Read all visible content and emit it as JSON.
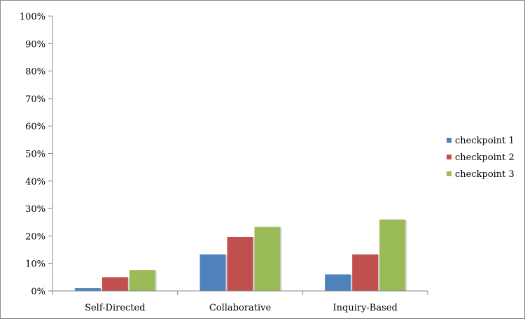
{
  "chart_data": {
    "type": "bar",
    "title": "",
    "xlabel": "",
    "ylabel": "",
    "categories": [
      "Self-Directed",
      "Collaborative",
      "Inquiry-Based"
    ],
    "series": [
      {
        "name": "checkpoint 1",
        "color": "#4f81bd",
        "values": [
          1,
          13.3,
          6
        ]
      },
      {
        "name": "checkpoint 2",
        "color": "#c0504d",
        "values": [
          5,
          19.6,
          13.3
        ]
      },
      {
        "name": "checkpoint 3",
        "color": "#9bbb59",
        "values": [
          7.6,
          23.3,
          26
        ]
      }
    ],
    "ylim": [
      0,
      100
    ],
    "y_ticks": [
      "0%",
      "10%",
      "20%",
      "30%",
      "40%",
      "50%",
      "60%",
      "70%",
      "80%",
      "90%",
      "100%"
    ],
    "grid": false,
    "legend_position": "right"
  }
}
